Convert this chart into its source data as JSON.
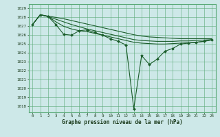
{
  "title": "Graphe pression niveau de la mer (hPa)",
  "background_color": "#cde8e8",
  "grid_color": "#5aaa78",
  "line_color": "#1a5c2a",
  "hours": [
    0,
    1,
    2,
    3,
    4,
    5,
    6,
    7,
    8,
    9,
    10,
    11,
    12,
    13,
    14,
    15,
    16,
    17,
    18,
    19,
    20,
    21,
    22,
    23
  ],
  "line_main": [
    1027.2,
    1028.3,
    1028.1,
    1027.2,
    1026.1,
    1026.0,
    1026.5,
    1026.6,
    1026.3,
    1026.0,
    1025.6,
    1025.3,
    1024.9,
    1017.7,
    1023.7,
    1022.7,
    1023.3,
    1024.2,
    1024.5,
    1025.0,
    1025.1,
    1025.2,
    1025.3,
    1025.5
  ],
  "line_top1": [
    1027.2,
    1028.3,
    1028.15,
    1028.0,
    1027.85,
    1027.65,
    1027.45,
    1027.25,
    1027.05,
    1026.85,
    1026.65,
    1026.45,
    1026.25,
    1026.05,
    1025.9,
    1025.8,
    1025.75,
    1025.7,
    1025.65,
    1025.6,
    1025.6,
    1025.6,
    1025.6,
    1025.6
  ],
  "line_top2": [
    1027.2,
    1028.3,
    1028.1,
    1027.8,
    1027.5,
    1027.2,
    1026.95,
    1026.7,
    1026.5,
    1026.3,
    1026.1,
    1025.9,
    1025.7,
    1025.5,
    1025.4,
    1025.35,
    1025.3,
    1025.3,
    1025.3,
    1025.35,
    1025.35,
    1025.4,
    1025.45,
    1025.5
  ],
  "line_top3": [
    1027.2,
    1028.3,
    1028.1,
    1027.5,
    1027.0,
    1026.7,
    1026.5,
    1026.4,
    1026.2,
    1026.0,
    1025.8,
    1025.6,
    1025.4,
    1025.2,
    1025.1,
    1025.05,
    1025.0,
    1025.0,
    1025.05,
    1025.1,
    1025.15,
    1025.2,
    1025.3,
    1025.45
  ],
  "ylim_min": 1017.3,
  "ylim_max": 1029.5,
  "yticks": [
    1018,
    1019,
    1020,
    1021,
    1022,
    1023,
    1024,
    1025,
    1026,
    1027,
    1028,
    1029
  ]
}
